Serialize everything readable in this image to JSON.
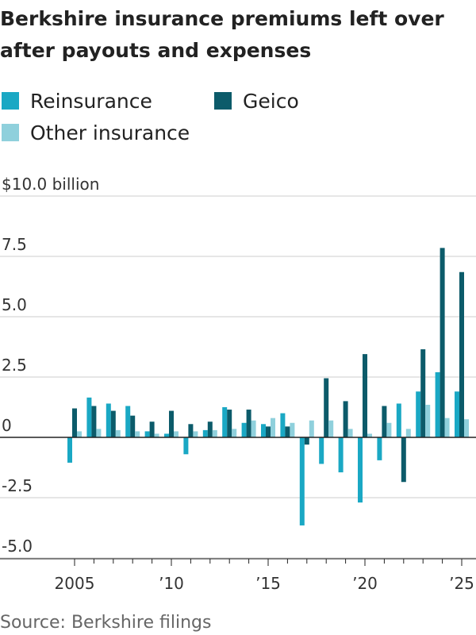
{
  "title": "Berkshire insurance premiums left over after payouts and expenses",
  "source": "Source: Berkshire filings",
  "legend": [
    {
      "name": "Reinsurance",
      "color": "#1aa8c4"
    },
    {
      "name": "Geico",
      "color": "#0c5b6a"
    },
    {
      "name": "Other insurance",
      "color": "#8fd0dc"
    }
  ],
  "chart_data": {
    "type": "bar",
    "title": "Berkshire insurance premiums left over after payouts and expenses",
    "ylabel": "$10.0 billion",
    "ylim": [
      -5.0,
      10.0
    ],
    "yticks": [
      10.0,
      7.5,
      5.0,
      2.5,
      0,
      -2.5,
      -5.0
    ],
    "ytick_labels": [
      "$10.0 billion",
      "7.5",
      "5.0",
      "2.5",
      "0",
      "-2.5",
      "-5.0"
    ],
    "xtick_labels": [
      {
        "year": 2005,
        "label": "2005"
      },
      {
        "year": 2010,
        "label": "’10"
      },
      {
        "year": 2015,
        "label": "’15"
      },
      {
        "year": 2020,
        "label": "’20"
      },
      {
        "year": 2025,
        "label": "’25"
      }
    ],
    "grid": true,
    "legend_position": "top-left",
    "categories": [
      2005,
      2006,
      2007,
      2008,
      2009,
      2010,
      2011,
      2012,
      2013,
      2014,
      2015,
      2016,
      2017,
      2018,
      2019,
      2020,
      2021,
      2022,
      2023,
      2024,
      2025
    ],
    "series": [
      {
        "name": "Reinsurance",
        "color": "#1aa8c4",
        "values": [
          -1.05,
          1.65,
          1.4,
          1.3,
          0.25,
          0.15,
          -0.7,
          0.3,
          1.25,
          0.6,
          0.55,
          1.0,
          -3.65,
          -1.1,
          -1.45,
          -2.7,
          -0.95,
          1.4,
          1.9,
          2.7,
          1.9
        ]
      },
      {
        "name": "Geico",
        "color": "#0c5b6a",
        "values": [
          1.2,
          1.3,
          1.1,
          0.9,
          0.65,
          1.1,
          0.55,
          0.65,
          1.15,
          1.15,
          0.45,
          0.45,
          -0.3,
          2.45,
          1.5,
          3.45,
          1.3,
          -1.85,
          3.65,
          7.85,
          6.85
        ]
      },
      {
        "name": "Other insurance",
        "color": "#8fd0dc",
        "values": [
          0.25,
          0.35,
          0.3,
          0.25,
          0.15,
          0.25,
          0.25,
          0.3,
          0.35,
          0.7,
          0.8,
          0.6,
          0.7,
          0.7,
          0.35,
          0.15,
          0.6,
          0.35,
          1.35,
          0.8,
          0.75
        ]
      }
    ]
  }
}
